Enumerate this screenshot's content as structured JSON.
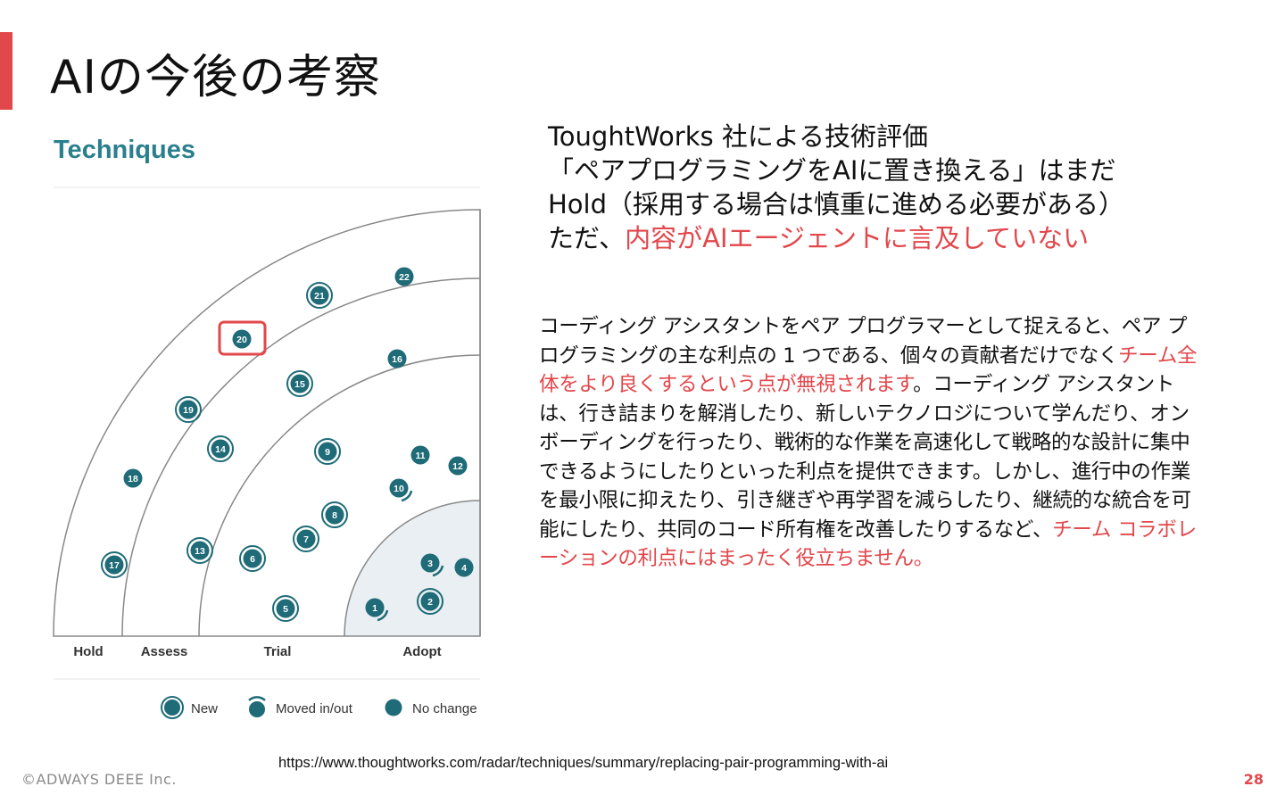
{
  "slide": {
    "title": "AIの今後の考察",
    "page_number": "28",
    "copyright": "©ADWAYS DEEE Inc.",
    "source_url": "https://www.thoughtworks.com/radar/techniques/summary/replacing-pair-programming-with-ai",
    "accent_color": "#e2474b"
  },
  "radar": {
    "heading": "Techniques",
    "ring_labels": [
      "Hold",
      "Assess",
      "Trial",
      "Adopt"
    ],
    "highlighted_blip": "20",
    "blips": [
      {
        "num": "1",
        "status": "moved"
      },
      {
        "num": "2",
        "status": "new"
      },
      {
        "num": "3",
        "status": "moved"
      },
      {
        "num": "4",
        "status": "no-change"
      },
      {
        "num": "5",
        "status": "new"
      },
      {
        "num": "6",
        "status": "new"
      },
      {
        "num": "7",
        "status": "new"
      },
      {
        "num": "8",
        "status": "new"
      },
      {
        "num": "9",
        "status": "new"
      },
      {
        "num": "10",
        "status": "moved"
      },
      {
        "num": "11",
        "status": "no-change"
      },
      {
        "num": "12",
        "status": "no-change"
      },
      {
        "num": "13",
        "status": "new"
      },
      {
        "num": "14",
        "status": "new"
      },
      {
        "num": "15",
        "status": "new"
      },
      {
        "num": "16",
        "status": "no-change"
      },
      {
        "num": "17",
        "status": "new"
      },
      {
        "num": "18",
        "status": "no-change"
      },
      {
        "num": "19",
        "status": "new"
      },
      {
        "num": "20",
        "status": "no-change"
      },
      {
        "num": "21",
        "status": "new"
      },
      {
        "num": "22",
        "status": "no-change"
      }
    ],
    "legend": [
      {
        "label": "New",
        "status": "new"
      },
      {
        "label": "Moved in/out",
        "status": "moved"
      },
      {
        "label": "No change",
        "status": "no-change"
      }
    ],
    "colors": {
      "blip": "#1f6b78",
      "ring_line": "#888888",
      "adopt_fill": "#e9eff2",
      "highlight": "#e2474b"
    }
  },
  "summary": {
    "line1": "ToughtWorks 社による技術評価",
    "line2": "「ペアプログラミングをAIに置き換える」はまだ",
    "line3": "Hold（採用する場合は慎重に進める必要がある）",
    "line4_prefix": "ただ、",
    "line4_highlight": "内容がAIエージェントに言及していない"
  },
  "quote": {
    "part1": "コーディング アシスタントをペア プログラマーとして捉えると、ペア プログラミングの主な利点の 1 つである、個々の貢献者だけでなく",
    "highlight1": "チーム全体をより良くするという点が無視されます",
    "part2": "。コーディング アシスタントは、行き詰まりを解消したり、新しいテクノロジについて学んだり、オンボーディングを行ったり、戦術的な作業を高速化して戦略的な設計に集中できるようにしたりといった利点を提供できます。しかし、進行中の作業を最小限に抑えたり、引き継ぎや再学習を減らしたり、継続的な統合を可能にしたり、共同のコード所有権を改善したりするなど、",
    "highlight2": "チーム コラボレーションの利点にはまったく役立ちません。"
  }
}
